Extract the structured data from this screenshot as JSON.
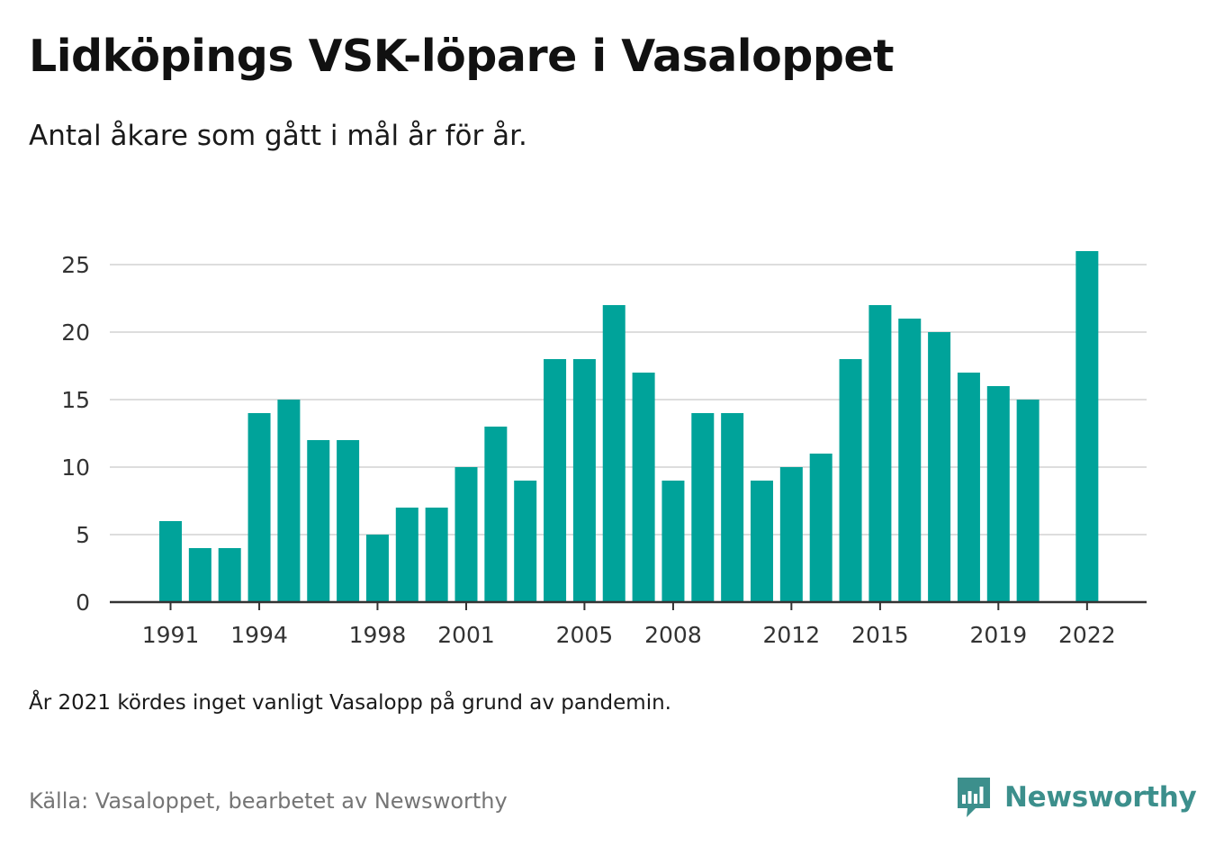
{
  "title": "Lidköpings VSK-löpare i Vasaloppet",
  "subtitle": "Antal åkare som gått i mål år för år.",
  "note": "År 2021 kördes inget vanligt Vasalopp på grund av pandemin.",
  "source": "Källa: Vasaloppet, bearbetet av Newsworthy",
  "brand": {
    "name": "Newsworthy",
    "icon": "newsworthy-logo-icon",
    "color": "#3c8f8c"
  },
  "colors": {
    "bar": "#00a39a",
    "grid": "#dddddd",
    "axis": "#333333",
    "tick_text": "#333333"
  },
  "chart_data": {
    "type": "bar",
    "x": [
      1991,
      1992,
      1993,
      1994,
      1995,
      1996,
      1997,
      1998,
      1999,
      2000,
      2001,
      2002,
      2003,
      2004,
      2005,
      2006,
      2007,
      2008,
      2009,
      2010,
      2011,
      2012,
      2013,
      2014,
      2015,
      2016,
      2017,
      2018,
      2019,
      2020,
      2022
    ],
    "values": [
      6,
      4,
      4,
      14,
      15,
      12,
      12,
      5,
      7,
      7,
      10,
      13,
      9,
      18,
      18,
      22,
      17,
      9,
      14,
      14,
      9,
      10,
      11,
      18,
      22,
      21,
      20,
      17,
      16,
      15,
      26
    ],
    "x_tick_labels": [
      "1991",
      "1994",
      "1998",
      "2001",
      "2005",
      "2008",
      "2012",
      "2015",
      "2019",
      "2022"
    ],
    "y_ticks": [
      "0",
      "5",
      "10",
      "15",
      "20",
      "25"
    ],
    "xlim": [
      1989.5,
      2023.5
    ],
    "ylim": [
      0,
      26
    ],
    "grid": "horizontal",
    "legend": "none"
  }
}
